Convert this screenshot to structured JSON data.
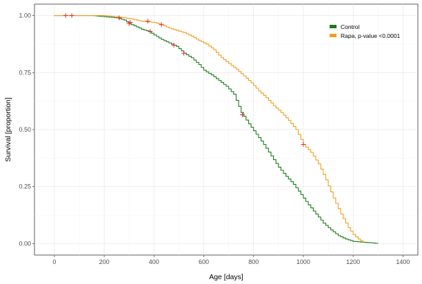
{
  "chart_data": {
    "type": "line",
    "subtype": "kaplan-meier-step",
    "xlabel": "Age [days]",
    "ylabel": "Survival [proportion]",
    "xlim": [
      -80,
      1460
    ],
    "ylim": [
      -0.05,
      1.05
    ],
    "x_ticks": [
      0,
      200,
      400,
      600,
      800,
      1000,
      1200,
      1400
    ],
    "y_ticks": [
      0.0,
      0.25,
      0.5,
      0.75,
      1.0
    ],
    "x_tick_labels": [
      "0",
      "200",
      "400",
      "600",
      "800",
      "1000",
      "1200",
      "1400"
    ],
    "y_tick_labels": [
      "0.00",
      "0.25",
      "0.50",
      "0.75",
      "1.00"
    ],
    "grid": true,
    "legend_position": "top-right",
    "series": [
      {
        "name": "Control",
        "color": "#1a7a1a",
        "points": [
          [
            0,
            1.0
          ],
          [
            150,
            1.0
          ],
          [
            200,
            0.995
          ],
          [
            250,
            0.99
          ],
          [
            280,
            0.98
          ],
          [
            300,
            0.965
          ],
          [
            320,
            0.955
          ],
          [
            350,
            0.94
          ],
          [
            380,
            0.93
          ],
          [
            400,
            0.915
          ],
          [
            430,
            0.895
          ],
          [
            460,
            0.88
          ],
          [
            490,
            0.865
          ],
          [
            520,
            0.835
          ],
          [
            550,
            0.815
          ],
          [
            580,
            0.785
          ],
          [
            600,
            0.76
          ],
          [
            630,
            0.74
          ],
          [
            660,
            0.715
          ],
          [
            690,
            0.69
          ],
          [
            720,
            0.655
          ],
          [
            750,
            0.575
          ],
          [
            780,
            0.525
          ],
          [
            810,
            0.48
          ],
          [
            840,
            0.435
          ],
          [
            870,
            0.385
          ],
          [
            900,
            0.335
          ],
          [
            930,
            0.295
          ],
          [
            960,
            0.26
          ],
          [
            990,
            0.215
          ],
          [
            1020,
            0.17
          ],
          [
            1050,
            0.13
          ],
          [
            1080,
            0.09
          ],
          [
            1110,
            0.06
          ],
          [
            1140,
            0.035
          ],
          [
            1170,
            0.02
          ],
          [
            1200,
            0.01
          ],
          [
            1240,
            0.006
          ],
          [
            1270,
            0.004
          ],
          [
            1300,
            0.0
          ]
        ],
        "censored": [
          [
            45,
            1.0
          ],
          [
            70,
            1.0
          ],
          [
            260,
            0.99
          ],
          [
            300,
            0.965
          ],
          [
            385,
            0.93
          ],
          [
            480,
            0.87
          ],
          [
            520,
            0.835
          ],
          [
            755,
            0.565
          ]
        ]
      },
      {
        "name": "Rapa, p-value <0.0001",
        "color": "#f39c1f",
        "points": [
          [
            0,
            1.0
          ],
          [
            200,
            1.0
          ],
          [
            250,
            0.995
          ],
          [
            280,
            0.99
          ],
          [
            310,
            0.985
          ],
          [
            350,
            0.975
          ],
          [
            400,
            0.97
          ],
          [
            430,
            0.96
          ],
          [
            460,
            0.945
          ],
          [
            490,
            0.935
          ],
          [
            520,
            0.925
          ],
          [
            550,
            0.91
          ],
          [
            580,
            0.89
          ],
          [
            610,
            0.875
          ],
          [
            640,
            0.85
          ],
          [
            670,
            0.815
          ],
          [
            700,
            0.79
          ],
          [
            730,
            0.765
          ],
          [
            760,
            0.735
          ],
          [
            790,
            0.705
          ],
          [
            820,
            0.67
          ],
          [
            850,
            0.64
          ],
          [
            880,
            0.605
          ],
          [
            910,
            0.575
          ],
          [
            940,
            0.54
          ],
          [
            970,
            0.5
          ],
          [
            1000,
            0.435
          ],
          [
            1030,
            0.4
          ],
          [
            1060,
            0.35
          ],
          [
            1090,
            0.28
          ],
          [
            1120,
            0.2
          ],
          [
            1150,
            0.13
          ],
          [
            1180,
            0.07
          ],
          [
            1200,
            0.04
          ],
          [
            1220,
            0.02
          ],
          [
            1240,
            0.005
          ]
        ],
        "censored": [
          [
            305,
            0.97
          ],
          [
            375,
            0.975
          ],
          [
            430,
            0.96
          ],
          [
            1000,
            0.435
          ]
        ]
      }
    ],
    "censor_color": "#e31a1c"
  }
}
